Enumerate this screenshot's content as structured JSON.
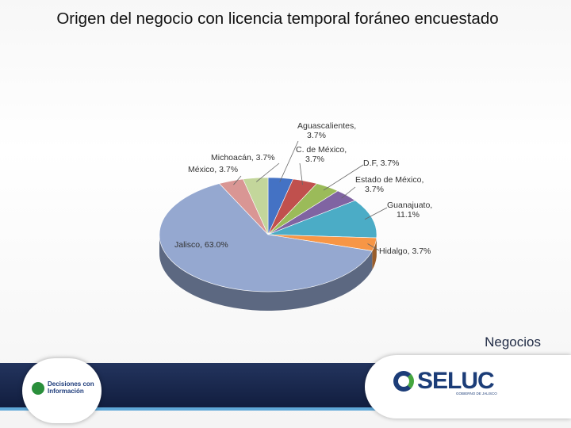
{
  "title": "Origen del negocio con licencia temporal foráneo encuestado",
  "section_label": "Negocios",
  "chart_data": {
    "type": "pie",
    "style": "3d",
    "title": "Origen del negocio con licencia temporal foráneo encuestado",
    "slices": [
      {
        "name": "Aguascalientes",
        "value": 3.7,
        "label_text": "Aguascalientes, 3.7%",
        "color": "#4472c4"
      },
      {
        "name": "C. de México",
        "value": 3.7,
        "label_text": "C. de México, 3.7%",
        "color": "#c0504d"
      },
      {
        "name": "D.F.",
        "value": 3.7,
        "label_text": "D.F, 3.7%",
        "color": "#9bbb59"
      },
      {
        "name": "Estado de México",
        "value": 3.7,
        "label_text": "Estado de México, 3.7%",
        "color": "#8064a2"
      },
      {
        "name": "Guanajuato",
        "value": 11.1,
        "label_text": "Guanajuato, 11.1%",
        "color": "#4bacc6"
      },
      {
        "name": "Hidalgo",
        "value": 3.7,
        "label_text": "Hidalgo, 3.7%",
        "color": "#f79646"
      },
      {
        "name": "Jalisco",
        "value": 63.0,
        "label_text": "Jalisco, 63.0%",
        "color": "#95a8d0"
      },
      {
        "name": "México",
        "value": 3.7,
        "label_text": "México, 3.7%",
        "color": "#d99694"
      },
      {
        "name": "Michoacán",
        "value": 3.7,
        "label_text": "Michoacán, 3.7%",
        "color": "#c3d69b"
      }
    ],
    "legend": "none"
  },
  "footer": {
    "left_logo_text": "Decisiones con Información",
    "right_logo_text": "SELUC",
    "right_logo_subtext": "GOBIERNO DE JALISCO"
  }
}
